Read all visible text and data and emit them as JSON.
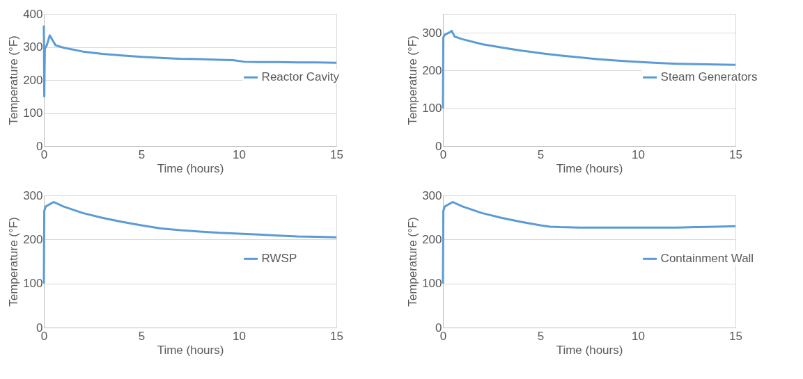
{
  "chart_data": [
    {
      "type": "line",
      "xlabel": "Time (hours)",
      "ylabel": "Temperature (°F)",
      "xlim": [
        0,
        15
      ],
      "xticks": [
        0,
        5,
        10,
        15
      ],
      "ylim": [
        0,
        400
      ],
      "yticks": [
        0,
        100,
        200,
        300,
        400
      ],
      "grid": "y",
      "legend": "right",
      "series": [
        {
          "name": "Reactor Cavity",
          "color": "#5b9bd5",
          "x": [
            0,
            0.02,
            0.05,
            0.15,
            0.3,
            0.45,
            0.6,
            1,
            2,
            3,
            4,
            5,
            6,
            7,
            8,
            9,
            9.7,
            10.3,
            11,
            12,
            13,
            14,
            15
          ],
          "values": [
            365,
            150,
            295,
            305,
            335,
            320,
            305,
            298,
            286,
            279,
            274,
            270,
            267,
            264,
            263,
            261,
            260,
            255,
            254,
            254,
            253,
            253,
            252
          ]
        }
      ]
    },
    {
      "type": "line",
      "xlabel": "Time (hours)",
      "ylabel": "Temperature (°F)",
      "xlim": [
        0,
        15
      ],
      "xticks": [
        0,
        5,
        10,
        15
      ],
      "ylim": [
        0,
        350
      ],
      "yticks": [
        0,
        100,
        200,
        300
      ],
      "grid": "y",
      "legend": "right",
      "series": [
        {
          "name": "Steam Generators",
          "color": "#5b9bd5",
          "x": [
            0,
            0.02,
            0.1,
            0.3,
            0.45,
            0.6,
            1,
            2,
            3,
            4,
            5,
            6,
            7,
            8,
            9,
            10,
            11,
            12,
            13,
            14,
            15
          ],
          "values": [
            100,
            288,
            295,
            300,
            305,
            290,
            283,
            270,
            261,
            253,
            246,
            240,
            235,
            230,
            226,
            223,
            220,
            218,
            217,
            216,
            215
          ]
        }
      ]
    },
    {
      "type": "line",
      "xlabel": "Time (hours)",
      "ylabel": "Temperature (°F)",
      "xlim": [
        0,
        15
      ],
      "xticks": [
        0,
        5,
        10,
        15
      ],
      "ylim": [
        0,
        300
      ],
      "yticks": [
        0,
        100,
        200,
        300
      ],
      "grid": "y",
      "legend": "right",
      "series": [
        {
          "name": "RWSP",
          "color": "#5b9bd5",
          "x": [
            0,
            0.02,
            0.1,
            0.5,
            1,
            2,
            3,
            4,
            5,
            6,
            7,
            8,
            9,
            10,
            11,
            12,
            13,
            14,
            15
          ],
          "values": [
            100,
            265,
            275,
            285,
            275,
            260,
            249,
            240,
            232,
            225,
            221,
            218,
            215,
            213,
            211,
            209,
            207,
            206,
            205
          ]
        }
      ]
    },
    {
      "type": "line",
      "xlabel": "Time (hours)",
      "ylabel": "Temperature (°F)",
      "xlim": [
        0,
        15
      ],
      "xticks": [
        0,
        5,
        10,
        15
      ],
      "ylim": [
        0,
        300
      ],
      "yticks": [
        0,
        100,
        200,
        300
      ],
      "grid": "y",
      "legend": "right",
      "series": [
        {
          "name": "Containment Wall",
          "color": "#5b9bd5",
          "x": [
            0,
            0.02,
            0.1,
            0.5,
            1,
            2,
            3,
            4,
            5,
            5.5,
            6,
            7,
            8,
            9,
            10,
            11,
            12,
            13,
            14,
            15
          ],
          "values": [
            100,
            265,
            275,
            285,
            275,
            260,
            249,
            240,
            232,
            229,
            228,
            227,
            227,
            227,
            227,
            227,
            227,
            228,
            229,
            230
          ]
        }
      ]
    }
  ]
}
